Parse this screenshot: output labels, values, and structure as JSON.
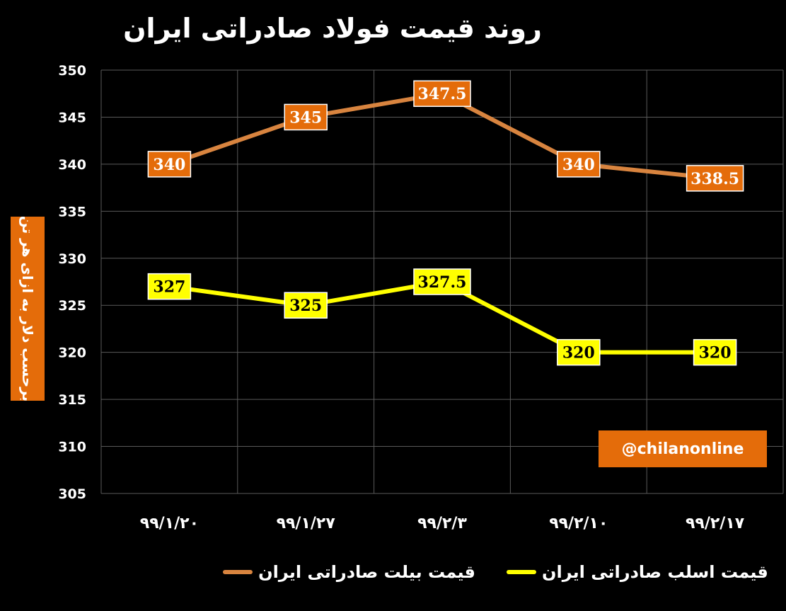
{
  "chart_data": {
    "type": "line",
    "title": "روند قیمت فولاد صادراتی ایران",
    "ylabel": "برحسب دلار به ازای هر تن",
    "categories": [
      "۹۹/۱/۲۰",
      "۹۹/۱/۲۷",
      "۹۹/۲/۳",
      "۹۹/۲/۱۰",
      "۹۹/۲/۱۷"
    ],
    "ylim": [
      305,
      350
    ],
    "yticks": [
      305,
      310,
      315,
      320,
      325,
      330,
      335,
      340,
      345,
      350
    ],
    "grid": true,
    "legend_position": "bottom",
    "series": [
      {
        "name": "قیمت بیلت صادراتی ایران",
        "color": "#d8843f",
        "label_bg": "#e46c0a",
        "label_color": "#ffffff",
        "values": [
          340,
          345,
          347.5,
          340,
          338.5
        ],
        "labels": [
          "340",
          "345",
          "347.5",
          "340",
          "338.5"
        ]
      },
      {
        "name": "قیمت اسلب صادراتی ایران",
        "color": "#ffff00",
        "label_bg": "#ffff00",
        "label_color": "#000000",
        "values": [
          327,
          325,
          327.5,
          320,
          320
        ],
        "labels": [
          "327",
          "325",
          "327.5",
          "320",
          "320"
        ]
      }
    ]
  },
  "watermark": "@chilanonline",
  "legend": {
    "billet_label": "قیمت بیلت صادراتی ایران",
    "slab_label": "قیمت اسلب صادراتی ایران"
  }
}
